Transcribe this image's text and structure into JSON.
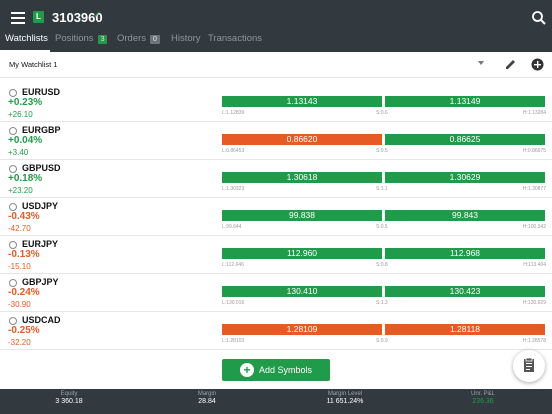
{
  "header": {
    "account_badge": "L",
    "account_number": "3103960",
    "account_check": "✓"
  },
  "tabs": [
    {
      "label": "Watchlists"
    },
    {
      "label": "Positions",
      "count": "3"
    },
    {
      "label": "Orders",
      "count": "0"
    },
    {
      "label": "History"
    },
    {
      "label": "Transactions"
    }
  ],
  "watchlist": {
    "name": "My Watchlist 1"
  },
  "instruments": [
    {
      "symbol": "EURUSD",
      "change_pct": "+0.23%",
      "change": "+26.10",
      "sell": "1.13143",
      "buy": "1.13149",
      "low": "L:1.12839",
      "spread": "S:0.6",
      "high": "H:1.13284",
      "dir": "up",
      "sell_color": "g"
    },
    {
      "symbol": "EURGBP",
      "change_pct": "+0.04%",
      "change": "+3.40",
      "sell": "0.86620",
      "buy": "0.86625",
      "low": "L:0.86453",
      "spread": "S:0.5",
      "high": "H:0.86675",
      "dir": "up",
      "sell_color": "o"
    },
    {
      "symbol": "GBPUSD",
      "change_pct": "+0.18%",
      "change": "+23.20",
      "sell": "1.30618",
      "buy": "1.30629",
      "low": "L:1.30323",
      "spread": "S:1.1",
      "high": "H:1.30877",
      "dir": "up",
      "sell_color": "g"
    },
    {
      "symbol": "USDJPY",
      "change_pct": "-0.43%",
      "change": "-42.70",
      "sell": "99.838",
      "buy": "99.843",
      "low": "L:99.644",
      "spread": "S:0.5",
      "high": "H:100.342",
      "dir": "down",
      "sell_color": "g"
    },
    {
      "symbol": "EURJPY",
      "change_pct": "-0.13%",
      "change": "-15.10",
      "sell": "112.960",
      "buy": "112.968",
      "low": "L:112.646",
      "spread": "S:0.8",
      "high": "H:113.404",
      "dir": "down",
      "sell_color": "g"
    },
    {
      "symbol": "GBPJPY",
      "change_pct": "-0.24%",
      "change": "-30.90",
      "sell": "130.410",
      "buy": "130.423",
      "low": "L:130.016",
      "spread": "S:1.3",
      "high": "H:130.929",
      "dir": "down",
      "sell_color": "g"
    },
    {
      "symbol": "USDCAD",
      "change_pct": "-0.25%",
      "change": "-32.20",
      "sell": "1.28109",
      "buy": "1.28118",
      "low": "L:1.28103",
      "spread": "S:0.9",
      "high": "H:1.28578",
      "dir": "down",
      "sell_color": "o"
    }
  ],
  "add_symbols": {
    "label": "Add Symbols"
  },
  "footer": [
    {
      "label": "Equity",
      "value": "3 360.18"
    },
    {
      "label": "Margin",
      "value": "28.84"
    },
    {
      "label": "Margin Level",
      "value": "11 651.24%"
    },
    {
      "label": "Unr. P&L",
      "value": "236.36"
    }
  ],
  "colors": {
    "up": "#1f9b4a",
    "down": "#e85a24",
    "header": "#323a40"
  },
  "icons": {
    "menu": "hamburger-icon",
    "search": "search-icon",
    "edit": "pencil-icon",
    "add": "plus-circle-icon",
    "clipboard": "clipboard-icon"
  }
}
